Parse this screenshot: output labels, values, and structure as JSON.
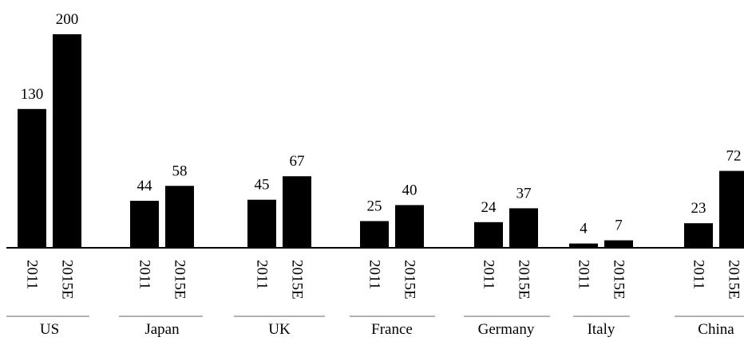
{
  "chart_data": {
    "type": "bar",
    "categories": [
      "US",
      "Japan",
      "UK",
      "France",
      "Germany",
      "Italy",
      "China"
    ],
    "series": [
      {
        "name": "2011",
        "values": [
          130,
          44,
          45,
          25,
          24,
          4,
          23
        ]
      },
      {
        "name": "2015E",
        "values": [
          200,
          58,
          67,
          40,
          37,
          7,
          72
        ]
      }
    ],
    "title": "",
    "xlabel": "",
    "ylabel": "",
    "ylim": [
      0,
      200
    ],
    "grid": false,
    "legend": "none",
    "bar_color": "#000000",
    "axis_color": "#000000",
    "group_line_color": "#9a9a9a"
  }
}
